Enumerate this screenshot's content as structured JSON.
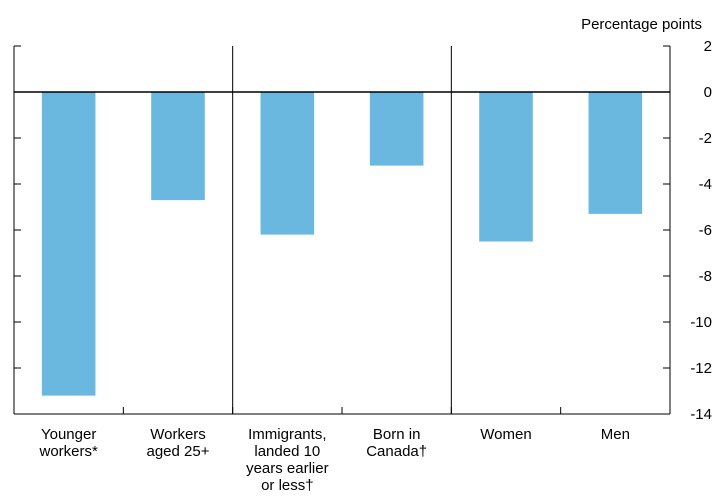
{
  "chart_data": {
    "type": "bar",
    "title": "",
    "ylabel": "Percentage points",
    "xlabel": "",
    "ylim": [
      -14,
      2
    ],
    "yticks": [
      2,
      0,
      -2,
      -4,
      -6,
      -8,
      -10,
      -12,
      -14
    ],
    "categories": [
      {
        "lines": [
          "Younger",
          "workers*"
        ]
      },
      {
        "lines": [
          "Workers",
          "aged 25+"
        ]
      },
      {
        "lines": [
          "Immigrants,",
          "landed 10",
          "years earlier",
          "or less†"
        ]
      },
      {
        "lines": [
          "Born in",
          "Canada†"
        ]
      },
      {
        "lines": [
          "Women"
        ]
      },
      {
        "lines": [
          "Men"
        ]
      }
    ],
    "values": [
      -13.2,
      -4.7,
      -6.2,
      -3.2,
      -6.5,
      -5.3
    ],
    "groups": [
      [
        0,
        1
      ],
      [
        2,
        3
      ],
      [
        4,
        5
      ]
    ],
    "bar_color": "#6ab8df",
    "grid": false,
    "legend": "none"
  }
}
